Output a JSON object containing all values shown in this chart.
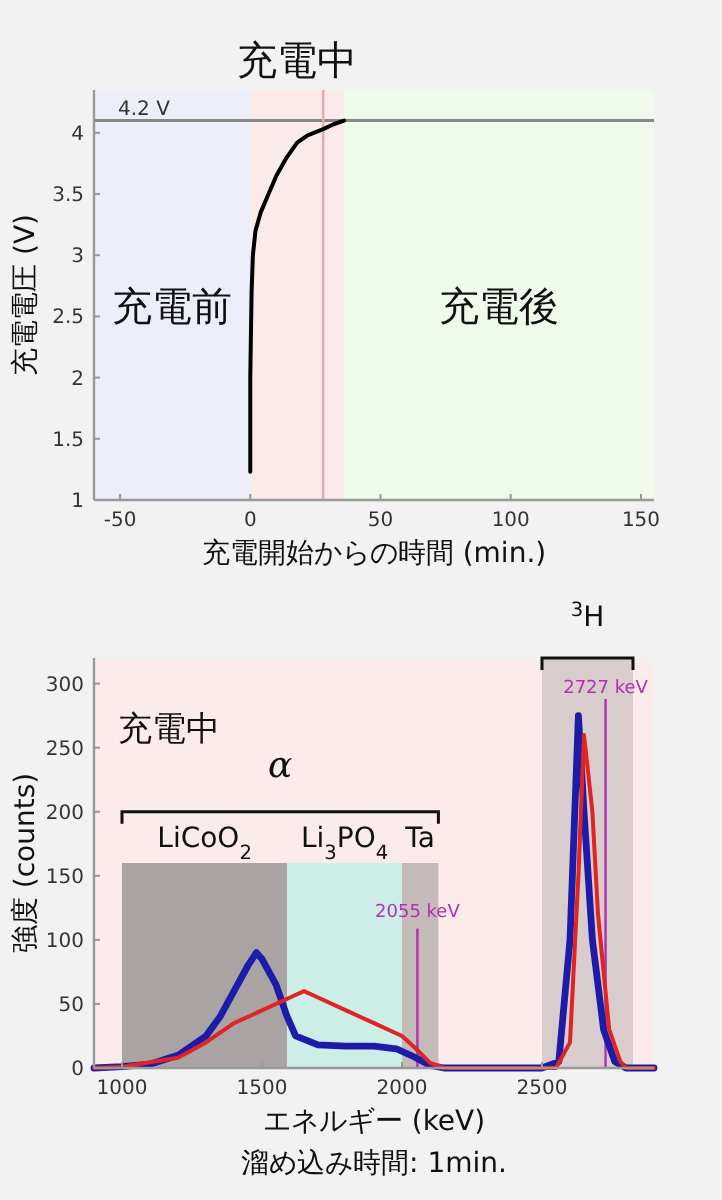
{
  "chart_data": [
    {
      "type": "line",
      "xlabel": "充電開始からの時間 (min.)",
      "ylabel": "充電電圧 (V)",
      "xlim": [
        -60,
        155
      ],
      "ylim": [
        1,
        4.35
      ],
      "xticks": [
        -50,
        0,
        50,
        100,
        150
      ],
      "yticks": [
        1,
        1.5,
        2,
        2.5,
        3,
        3.5,
        4
      ],
      "bands": [
        {
          "axis": "x",
          "from": -60,
          "to": 0,
          "label": "充電前",
          "color": "#eceef9"
        },
        {
          "axis": "x",
          "from": 0,
          "to": 36,
          "label": "充電中",
          "color": "#fbeaea"
        },
        {
          "axis": "x",
          "from": 36,
          "to": 155,
          "label": "充電後",
          "color": "#eefaea"
        }
      ],
      "ref_lines": [
        {
          "axis": "y",
          "value": 4.1,
          "label": "4.2 V",
          "color": "#888888"
        },
        {
          "axis": "x",
          "value": 28,
          "color": "#eaa6ae"
        }
      ],
      "series": [
        {
          "color": "#000000",
          "x": [
            0,
            0,
            0.5,
            1,
            2,
            4,
            7,
            10,
            14,
            18,
            22,
            28,
            32,
            36
          ],
          "values": [
            1.23,
            2.0,
            2.7,
            3.0,
            3.2,
            3.35,
            3.5,
            3.65,
            3.8,
            3.92,
            3.98,
            4.03,
            4.07,
            4.1
          ]
        }
      ]
    },
    {
      "type": "line",
      "xlabel": "エネルギー (keV)",
      "ylabel": "強度 (counts)",
      "xlim": [
        900,
        2900
      ],
      "ylim": [
        0,
        320
      ],
      "xticks": [
        1000,
        1500,
        2000,
        2500
      ],
      "yticks": [
        0,
        50,
        100,
        150,
        200,
        250,
        300
      ],
      "annotations": [
        "α",
        "溜め込み時間: 1min."
      ],
      "bands": [
        {
          "axis": "x",
          "from": 900,
          "to": 2900,
          "label": "充電中",
          "color": "#fbebea"
        },
        {
          "axis": "x",
          "from": 1000,
          "to": 1590,
          "label": "LiCoO$_{2}$",
          "color": "#aaa3a3"
        },
        {
          "axis": "x",
          "from": 1590,
          "to": 2000,
          "label": "Li$_{3}$PO$_{4}$",
          "color": "#cdeee6"
        },
        {
          "axis": "x",
          "from": 2000,
          "to": 2130,
          "label": "Ta",
          "color": "#c4baba"
        },
        {
          "axis": "x",
          "from": 2500,
          "to": 2825,
          "label": "$^{3}$H",
          "color": "#d9cccc"
        }
      ],
      "ref_lines": [
        {
          "axis": "x",
          "value": 2055,
          "label": "2055 keV",
          "color": "#b030b0"
        },
        {
          "axis": "x",
          "value": 2727,
          "label": "2727 keV",
          "color": "#b030b0"
        }
      ],
      "series": [
        {
          "color": "#1c1ca8",
          "x": [
            900,
            1000,
            1100,
            1200,
            1300,
            1350,
            1400,
            1450,
            1480,
            1500,
            1550,
            1590,
            1620,
            1700,
            1800,
            1900,
            1980,
            2050,
            2100,
            2150,
            2500,
            2560,
            2600,
            2630,
            2650,
            2680,
            2720,
            2760,
            2800,
            2900
          ],
          "values": [
            0,
            1,
            3,
            10,
            25,
            40,
            60,
            80,
            90,
            85,
            65,
            40,
            25,
            18,
            17,
            17,
            15,
            8,
            2,
            0,
            0,
            5,
            100,
            275,
            200,
            100,
            30,
            5,
            0,
            0
          ]
        },
        {
          "color": "#e02424",
          "x": [
            900,
            1000,
            1200,
            1300,
            1400,
            1500,
            1600,
            1650,
            1700,
            1800,
            1900,
            2000,
            2050,
            2100,
            2150,
            2550,
            2600,
            2630,
            2650,
            2680,
            2700,
            2740,
            2780,
            2800,
            2900
          ],
          "values": [
            0,
            1,
            8,
            20,
            35,
            45,
            55,
            60,
            55,
            45,
            35,
            25,
            15,
            4,
            0,
            0,
            20,
            150,
            260,
            200,
            120,
            30,
            5,
            0,
            0
          ]
        }
      ]
    }
  ]
}
